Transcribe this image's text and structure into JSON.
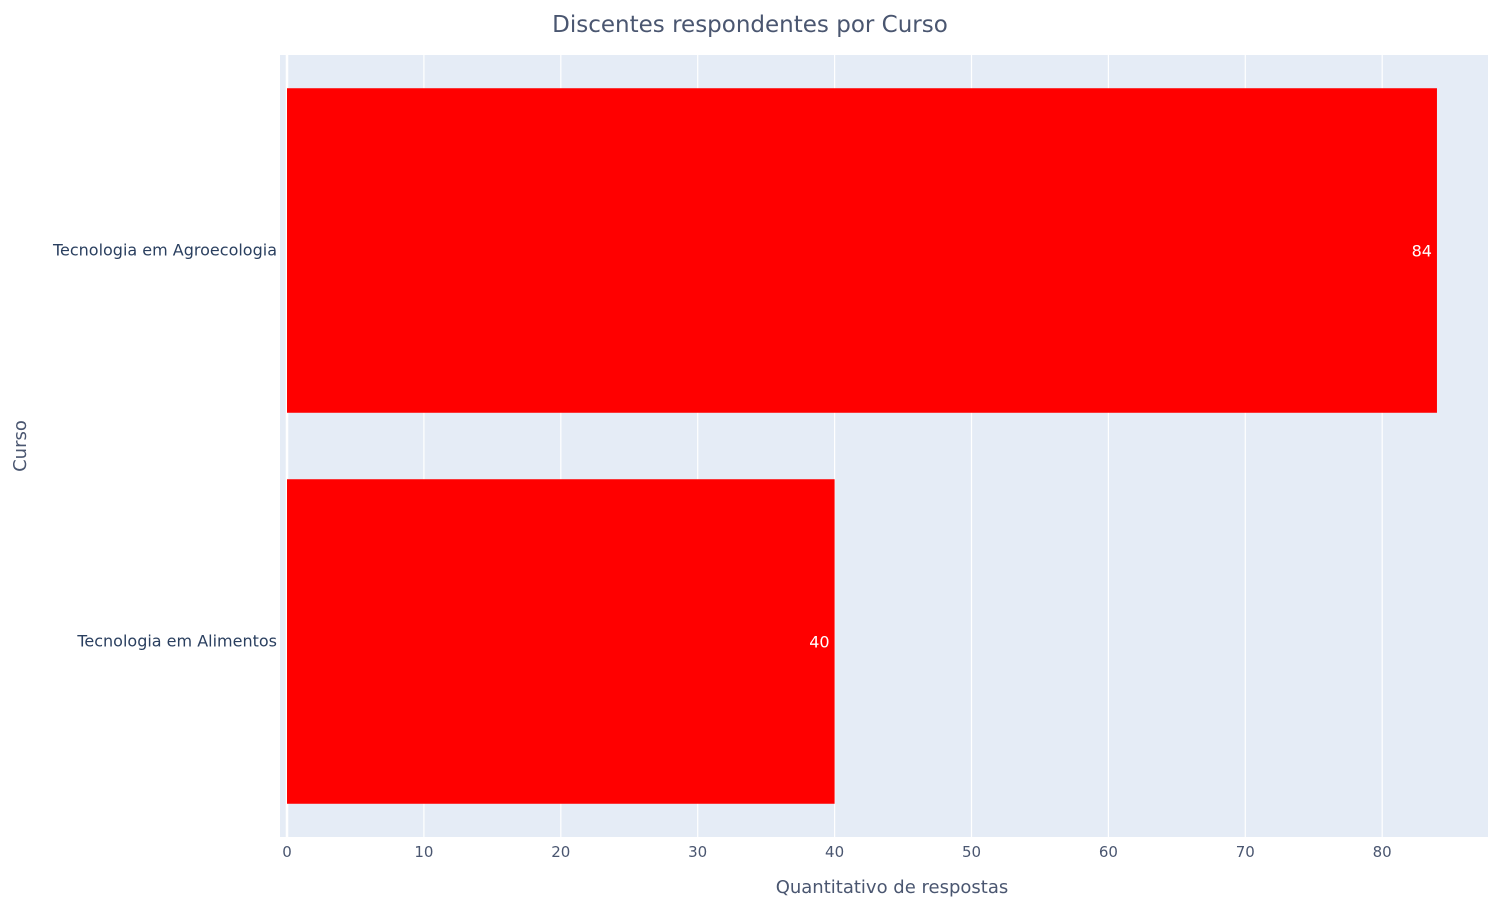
{
  "chart_data": {
    "type": "bar",
    "orientation": "horizontal",
    "title": "Discentes respondentes por Curso",
    "xlabel": "Quantitativo de respostas",
    "ylabel": "Curso",
    "categories": [
      "Tecnologia em Agroecologia",
      "Tecnologia em Alimentos"
    ],
    "values": [
      84,
      40
    ],
    "data_labels": [
      "84",
      "40"
    ],
    "xlim": [
      0,
      88
    ],
    "xticks": [
      0,
      10,
      20,
      30,
      40,
      50,
      60,
      70,
      80
    ],
    "xtick_labels": [
      "0",
      "10",
      "20",
      "30",
      "40",
      "50",
      "60",
      "70",
      "80"
    ],
    "grid": true,
    "bar_color": "#ff0000",
    "plot_background": "#e5ecf6",
    "gridline_color": "#ffffff"
  }
}
